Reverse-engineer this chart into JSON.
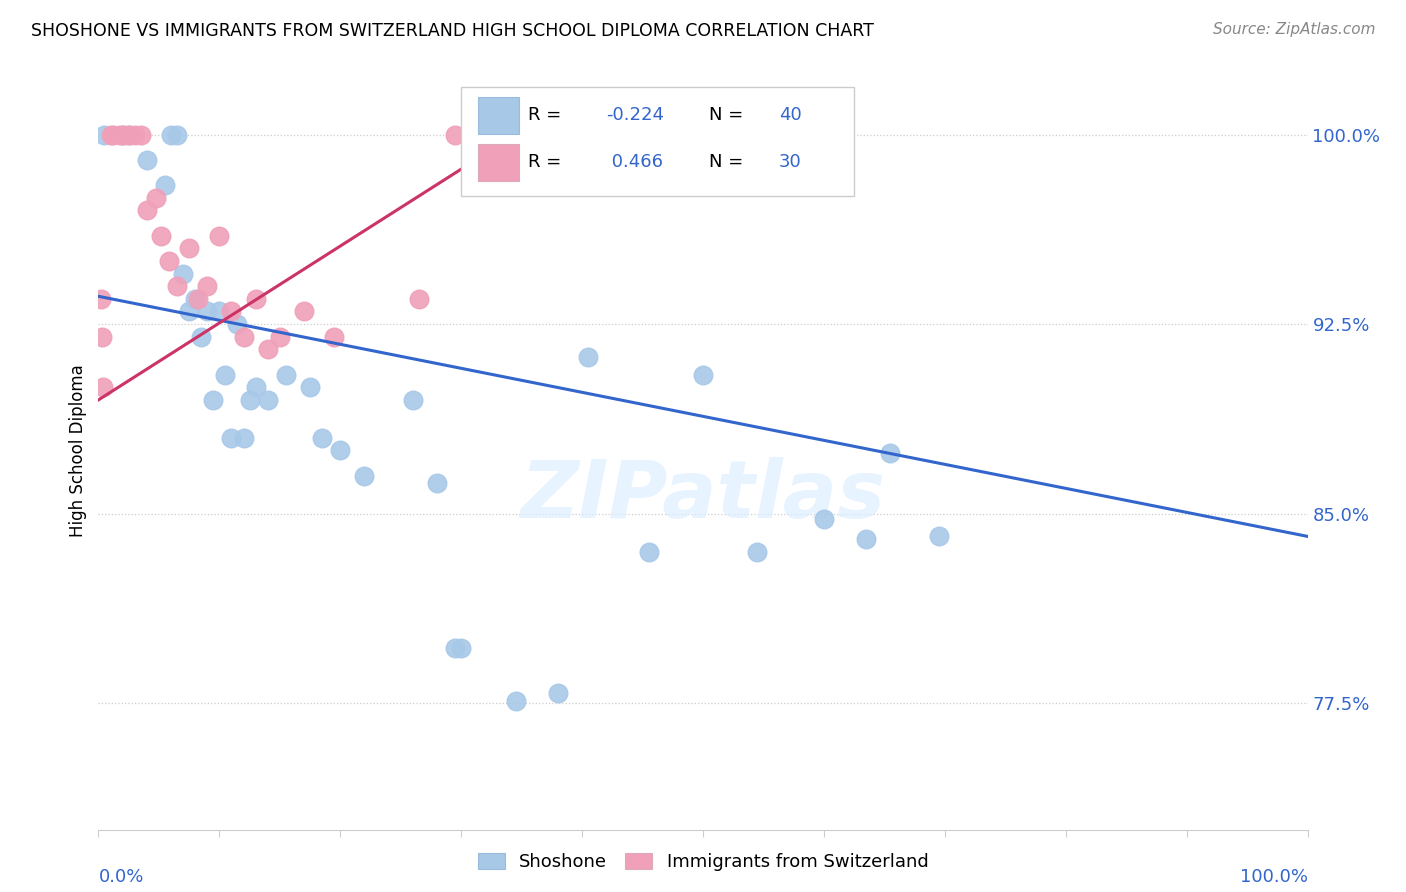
{
  "title": "SHOSHONE VS IMMIGRANTS FROM SWITZERLAND HIGH SCHOOL DIPLOMA CORRELATION CHART",
  "source": "Source: ZipAtlas.com",
  "ylabel": "High School Diploma",
  "xlim": [
    0.0,
    1.0
  ],
  "ylim": [
    0.725,
    1.025
  ],
  "yticks": [
    0.775,
    0.85,
    0.925,
    1.0
  ],
  "ytick_labels": [
    "77.5%",
    "85.0%",
    "92.5%",
    "100.0%"
  ],
  "blue_color": "#a8c8e8",
  "blue_line_color": "#3366cc",
  "pink_color": "#f0a0b8",
  "pink_line_color": "#cc3366",
  "watermark_color": "#ddeeff",
  "blue_scatter_x": [
    0.005,
    0.02,
    0.025,
    0.04,
    0.055,
    0.06,
    0.065,
    0.07,
    0.075,
    0.08,
    0.085,
    0.09,
    0.095,
    0.1,
    0.105,
    0.11,
    0.115,
    0.12,
    0.125,
    0.13,
    0.14,
    0.155,
    0.175,
    0.185,
    0.2,
    0.22,
    0.26,
    0.28,
    0.295,
    0.3,
    0.345,
    0.38,
    0.405,
    0.455,
    0.5,
    0.545,
    0.6,
    0.635,
    0.655,
    0.695
  ],
  "blue_scatter_y": [
    1.0,
    1.0,
    1.0,
    0.99,
    0.98,
    1.0,
    1.0,
    0.945,
    0.93,
    0.935,
    0.92,
    0.93,
    0.895,
    0.93,
    0.905,
    0.88,
    0.925,
    0.88,
    0.895,
    0.9,
    0.895,
    0.905,
    0.9,
    0.88,
    0.875,
    0.865,
    0.895,
    0.862,
    0.797,
    0.797,
    0.776,
    0.779,
    0.912,
    0.835,
    0.905,
    0.835,
    0.848,
    0.84,
    0.874,
    0.841
  ],
  "pink_scatter_x": [
    0.002,
    0.003,
    0.004,
    0.01,
    0.012,
    0.018,
    0.02,
    0.025,
    0.03,
    0.035,
    0.04,
    0.048,
    0.052,
    0.058,
    0.065,
    0.075,
    0.082,
    0.09,
    0.1,
    0.11,
    0.12,
    0.13,
    0.14,
    0.15,
    0.17,
    0.195,
    0.265,
    0.295,
    0.345,
    0.4
  ],
  "pink_scatter_y": [
    0.935,
    0.92,
    0.9,
    1.0,
    1.0,
    1.0,
    1.0,
    1.0,
    1.0,
    1.0,
    0.97,
    0.975,
    0.96,
    0.95,
    0.94,
    0.955,
    0.935,
    0.94,
    0.96,
    0.93,
    0.92,
    0.935,
    0.915,
    0.92,
    0.93,
    0.92,
    0.935,
    1.0,
    1.0,
    1.0
  ],
  "blue_line_x0": 0.0,
  "blue_line_x1": 1.0,
  "blue_line_y0": 0.936,
  "blue_line_y1": 0.841,
  "pink_line_x0": 0.0,
  "pink_line_x1": 0.345,
  "pink_line_y0": 0.895,
  "pink_line_y1": 1.0
}
